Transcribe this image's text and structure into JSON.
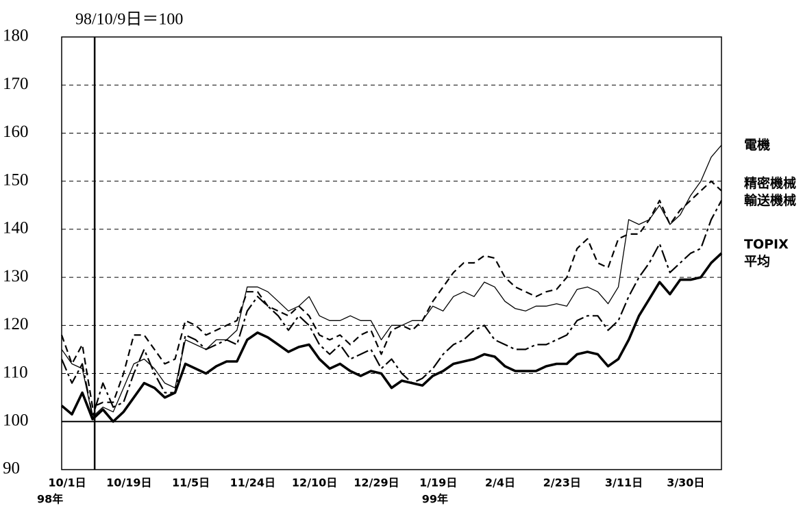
{
  "chart_data": {
    "type": "line",
    "annotation": "98/10/9日＝100",
    "categories": [
      "10/1日",
      null,
      null,
      null,
      null,
      null,
      "10/19日",
      null,
      null,
      null,
      null,
      null,
      "11/5日",
      null,
      null,
      null,
      null,
      null,
      "11/24日",
      null,
      null,
      null,
      null,
      null,
      "12/10日",
      null,
      null,
      null,
      null,
      null,
      "12/29日",
      null,
      null,
      null,
      null,
      null,
      "1/19日",
      null,
      null,
      null,
      null,
      null,
      "2/4日",
      null,
      null,
      null,
      null,
      null,
      "2/23日",
      null,
      null,
      null,
      null,
      null,
      "3/11日",
      null,
      null,
      null,
      null,
      null,
      "3/30日",
      null,
      null,
      null,
      null
    ],
    "year_labels": [
      "98年",
      null,
      null,
      null,
      null,
      null,
      null,
      null,
      null,
      null,
      null,
      null,
      null,
      null,
      null,
      null,
      null,
      null,
      null,
      null,
      null,
      null,
      null,
      null,
      null,
      null,
      null,
      null,
      null,
      null,
      null,
      null,
      null,
      null,
      null,
      null,
      "99年",
      null,
      null,
      null,
      null,
      null,
      null,
      null,
      null,
      null,
      null,
      null,
      null,
      null,
      null,
      null,
      null,
      null,
      null,
      null,
      null,
      null,
      null,
      null,
      null,
      null,
      null,
      null,
      null
    ],
    "ylim": [
      90,
      180
    ],
    "yticks": [
      90,
      100,
      110,
      120,
      130,
      140,
      150,
      160,
      170,
      180
    ],
    "grid": true,
    "baseline": 100,
    "series": [
      {
        "name": "電機",
        "color": "#000000",
        "style": "solid",
        "width": 1.3,
        "values": [
          115,
          112,
          111,
          101,
          103,
          102,
          107,
          112,
          113,
          111,
          108,
          107,
          117,
          116,
          115,
          117,
          117,
          119,
          128,
          128,
          127,
          125,
          123,
          124,
          126,
          122,
          121,
          121,
          122,
          121,
          121,
          117,
          120,
          120,
          121,
          121,
          124,
          123,
          126,
          127,
          126,
          129,
          128,
          125,
          123.5,
          123,
          124,
          124,
          124.5,
          124,
          127.5,
          128,
          127,
          124.5,
          128,
          142,
          141,
          142,
          145,
          141,
          143,
          147,
          150,
          155,
          157.5
        ]
      },
      {
        "name": "精密機械",
        "color": "#000000",
        "style": "dashed",
        "width": 2.2,
        "values": [
          118,
          112,
          116,
          103,
          104,
          104,
          110,
          118,
          118,
          115,
          112,
          113,
          121,
          120,
          118,
          119,
          120,
          121,
          127,
          127,
          124,
          123,
          122,
          124,
          122,
          118,
          117,
          118,
          116,
          118,
          119,
          114,
          119,
          120,
          119,
          121,
          125,
          128,
          131,
          133,
          133,
          134.5,
          134,
          130,
          128,
          127,
          126,
          127,
          127.5,
          130,
          136,
          138,
          133,
          132,
          138,
          139,
          139,
          142,
          146,
          141,
          144,
          146,
          148,
          150,
          148
        ]
      },
      {
        "name": "輸送機械",
        "color": "#000000",
        "style": "dashdot",
        "width": 2.2,
        "values": [
          113,
          108,
          112,
          101,
          108,
          103,
          104,
          110,
          115,
          110,
          106,
          106,
          118,
          117,
          115,
          116,
          117,
          116,
          123,
          126,
          124,
          122,
          119,
          122,
          120,
          116,
          114,
          116,
          113,
          114,
          115,
          111,
          113,
          110,
          108,
          109,
          111,
          114,
          116,
          117,
          119,
          120,
          117,
          116,
          115,
          115,
          116,
          116,
          117,
          118,
          121,
          122,
          122,
          119,
          121,
          126,
          130,
          133,
          137,
          131,
          133,
          135,
          136,
          142,
          146
        ]
      },
      {
        "name": "TOPIX\n平均",
        "color": "#000000",
        "style": "solid",
        "width": 3.6,
        "values": [
          103.3,
          101.5,
          106,
          100.5,
          102.5,
          100,
          102,
          105,
          108,
          107,
          105,
          106,
          112,
          111,
          110,
          111.5,
          112.5,
          112.5,
          117,
          118.5,
          117.5,
          116,
          114.5,
          115.5,
          116,
          113,
          111,
          112,
          110.5,
          109.5,
          110.5,
          110,
          107,
          108.5,
          108,
          107.5,
          109.5,
          110.5,
          112,
          112.5,
          113,
          114,
          113.5,
          111.5,
          110.5,
          110.5,
          110.5,
          111.5,
          112,
          112,
          114,
          114.5,
          114,
          111.5,
          113,
          117,
          122,
          125.5,
          129,
          126.5,
          129.5,
          129.5,
          130,
          133,
          135
        ]
      }
    ]
  }
}
